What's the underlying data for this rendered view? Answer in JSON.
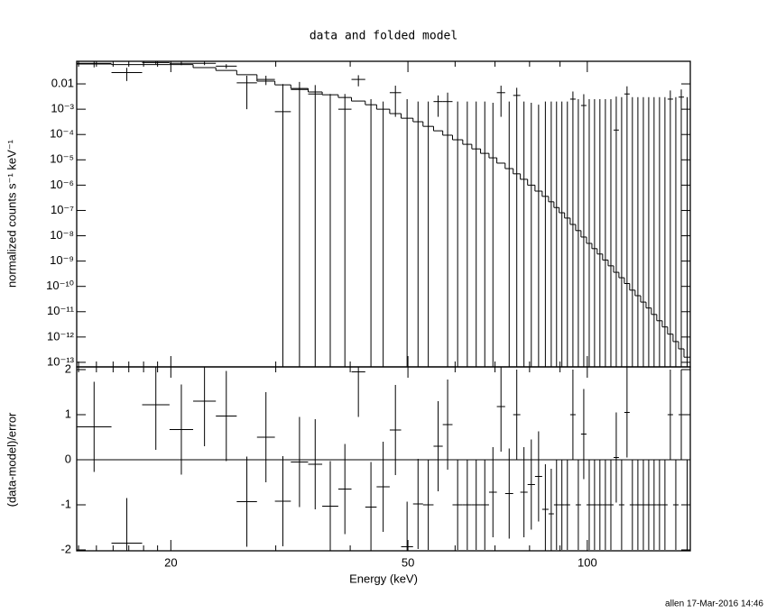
{
  "chart_data": [
    {
      "type": "spectrum",
      "title": "data and folded model",
      "ylabel": "normalized counts s⁻¹ keV⁻¹",
      "yscale": "log",
      "xscale": "log",
      "xlim": [
        13.9,
        148.9
      ],
      "ylim": [
        6.6e-14,
        0.078
      ],
      "yticks": [
        0.01,
        {
          "value": 0.001,
          "label": "10⁻³"
        },
        {
          "value": 0.0001,
          "label": "10⁻⁴"
        },
        {
          "value": 1e-05,
          "label": "10⁻⁵"
        },
        {
          "value": 1e-06,
          "label": "10⁻⁶"
        },
        {
          "value": 1e-07,
          "label": "10⁻⁷"
        },
        {
          "value": 1e-08,
          "label": "10⁻⁸"
        },
        {
          "value": 1e-09,
          "label": "10⁻⁹"
        },
        {
          "value": 1e-10,
          "label": "10⁻¹⁰"
        },
        {
          "value": 1e-11,
          "label": "10⁻¹¹"
        },
        {
          "value": 1e-12,
          "label": "10⁻¹²"
        },
        {
          "value": 1e-13,
          "label": "10⁻¹³"
        }
      ],
      "color": "#000000",
      "bins": [
        13.9,
        15.9,
        17.9,
        19.9,
        21.8,
        23.8,
        25.8,
        27.9,
        29.9,
        31.8,
        34.0,
        35.9,
        38.2,
        40.2,
        42.4,
        44.3,
        46.6,
        48.7,
        51.0,
        53.0,
        55.2,
        57.2,
        59.4,
        61.8,
        64.0,
        66.2,
        68.4,
        70.5,
        72.8,
        75.1,
        77.2,
        79.4,
        81.7,
        84.0,
        86.1,
        87.9,
        89.7,
        91.6,
        93.6,
        95.6,
        97.6,
        99.7,
        101.8,
        103.9,
        106.1,
        108.4,
        110.7,
        113.0,
        115.4,
        117.8,
        120.3,
        122.9,
        125.5,
        128.1,
        130.8,
        133.6,
        136.4,
        139.3,
        142.3,
        145.3,
        148.9
      ],
      "model": [
        0.061,
        0.058,
        0.058,
        0.058,
        0.044,
        0.034,
        0.023,
        0.0128,
        0.0092,
        0.0066,
        0.0048,
        0.0037,
        0.0029,
        0.0021,
        0.0015,
        0.001,
        0.00067,
        0.00044,
        0.00032,
        0.00021,
        0.00014,
        9.4e-05,
        6.2e-05,
        4.1e-05,
        2.7e-05,
        1.8e-05,
        1.2e-05,
        7.4e-06,
        4.5e-06,
        2.8e-06,
        1.7e-06,
        1e-06,
        5.8e-07,
        3.6e-07,
        2.2e-07,
        1.3e-07,
        8.1e-08,
        5e-08,
        2.8e-08,
        1.6e-08,
        8.9e-09,
        5e-09,
        3.1e-09,
        1.9e-09,
        1.1e-09,
        6.5e-10,
        3.6e-10,
        2.2e-10,
        1.3e-10,
        7.1e-11,
        4.3e-11,
        2.4e-11,
        1.4e-11,
        7.8e-12,
        4.4e-12,
        2.5e-12,
        1.3e-12,
        6.6e-13,
        3.4e-13,
        1.6e-13
      ],
      "data": [
        0.065,
        0.028,
        0.07,
        0.065,
        0.065,
        0.05,
        0.011,
        0.015,
        0.0008,
        0.006,
        0.004,
        0,
        0.001,
        0.015,
        0,
        0,
        0.0045,
        0,
        0,
        0,
        0.002,
        0.002,
        0,
        0,
        0,
        0,
        0,
        0.0045,
        0,
        0.0035,
        0,
        0,
        0,
        0,
        0,
        0,
        0,
        0,
        0.0025,
        0,
        0.0014,
        0,
        0,
        0,
        0,
        0,
        0.00015,
        0,
        0.004,
        0,
        0,
        0,
        0,
        0,
        0,
        0,
        0.0025,
        0,
        0.003,
        0
      ],
      "errors": [
        0.02,
        0.015,
        0.01,
        0.01,
        0.01,
        0.01,
        0.01,
        0.006,
        0.009,
        0.006,
        0.005,
        0.004,
        0.003,
        0.007,
        0.0025,
        0.002,
        0.004,
        0.0025,
        0.002,
        0.002,
        0.0015,
        0.0025,
        0.002,
        0.002,
        0.002,
        0.002,
        0.0018,
        0.004,
        0.002,
        0.0035,
        0.002,
        0.0018,
        0.0015,
        0.002,
        0.002,
        0.002,
        0.002,
        0.002,
        0.0025,
        0.0025,
        0.0025,
        0.0025,
        0.0025,
        0.0025,
        0.0025,
        0.0025,
        0.003,
        0.003,
        0.004,
        0.003,
        0.003,
        0.003,
        0.003,
        0.003,
        0.003,
        0.003,
        0.003,
        0.003,
        0.003,
        0.003
      ]
    },
    {
      "type": "residual",
      "ylabel": "(data-model)/error",
      "xlabel": "Energy (keV)",
      "ylim": [
        -2.02,
        2.06
      ],
      "yticks": [
        -2,
        -1,
        0,
        1,
        2
      ],
      "xticks": [
        20,
        50,
        100
      ],
      "xminor": [
        14,
        15,
        16,
        17,
        18,
        19,
        30,
        40,
        60,
        70,
        80,
        90
      ],
      "reference_line": 0,
      "reference_color": "#33dd33",
      "color": "#000000",
      "values": [
        0.73,
        -1.85,
        1.22,
        0.67,
        1.3,
        0.97,
        -0.93,
        0.5,
        -0.92,
        -0.05,
        -0.1,
        -1.03,
        -0.65,
        1.95,
        -1.05,
        -0.6,
        0.66,
        -1.93,
        -0.98,
        -1.0,
        0.3,
        0.78,
        -1.0,
        -1.0,
        -1.0,
        -1.0,
        -0.72,
        1.18,
        -0.75,
        1.0,
        -0.72,
        -0.55,
        -0.37,
        -1.1,
        -1.2,
        -1.0,
        -1.0,
        -1.0,
        1.0,
        -1.0,
        0.57,
        -1.0,
        -1.0,
        -1.0,
        -1.0,
        -1.0,
        0.05,
        -1.0,
        1.05,
        -1.0,
        -1.0,
        -1.0,
        -1.0,
        -1.0,
        -1.0,
        -1.0,
        1.0,
        -1.0,
        1.0,
        -1.0
      ],
      "errors": [
        1,
        1,
        1,
        1,
        1,
        1,
        1,
        1,
        1,
        1,
        1,
        1,
        1,
        1,
        1,
        1,
        1,
        1,
        1,
        1,
        1,
        1,
        1,
        1,
        1,
        1,
        1,
        1,
        1,
        1,
        1,
        1,
        1,
        1,
        1,
        1,
        1,
        1,
        1,
        1,
        1,
        1,
        1,
        1,
        1,
        1,
        1,
        1,
        1,
        1,
        1,
        1,
        1,
        1,
        1,
        1,
        1,
        1,
        1,
        1
      ]
    }
  ],
  "footer": "allen 17-Mar-2016 14:46"
}
